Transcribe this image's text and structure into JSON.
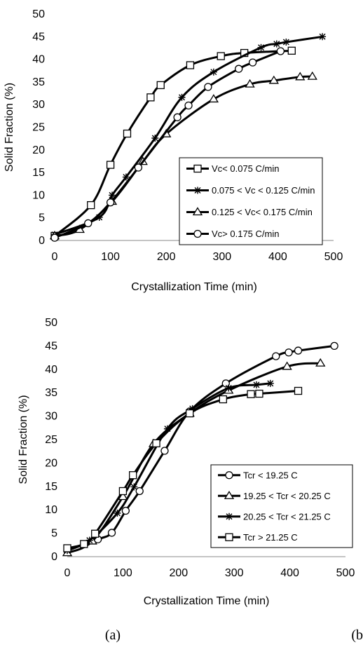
{
  "panel_labels": [
    "(a)",
    "(b"
  ],
  "chart_data": [
    {
      "type": "line",
      "xlabel": "Crystallization Time (min)",
      "ylabel": "Solid Fraction (%)",
      "xlim": [
        0,
        500
      ],
      "ylim": [
        0,
        50
      ],
      "xticks": [
        "0",
        "100",
        "200",
        "300",
        "400",
        "500"
      ],
      "yticks": [
        "0",
        "5",
        "10",
        "15",
        "20",
        "25",
        "30",
        "35",
        "40",
        "45",
        "50"
      ],
      "grid": false,
      "legend_position": "center-right",
      "series": [
        {
          "name": "Vc< 0.075  C/min",
          "marker": "square",
          "x": [
            0,
            65,
            100,
            130,
            172,
            190,
            243,
            298,
            340,
            425
          ],
          "y": [
            1,
            7.8,
            16.7,
            23.6,
            31.6,
            34.3,
            38.7,
            40.7,
            41.4,
            41.9
          ]
        },
        {
          "name": "0.075 < Vc < 0.125 C/min",
          "marker": "star",
          "x": [
            0,
            80,
            103,
            128,
            180,
            228,
            285,
            370,
            398,
            415,
            480
          ],
          "y": [
            1.3,
            5.1,
            10,
            14,
            22.6,
            31.6,
            37.2,
            42.6,
            43.4,
            43.8,
            45
          ]
        },
        {
          "name": "0.125 < Vc< 0.175 C/min",
          "marker": "triangle",
          "x": [
            0,
            45,
            103,
            158,
            200,
            285,
            350,
            393,
            440,
            462
          ],
          "y": [
            1,
            2.4,
            8.6,
            17.4,
            23.5,
            31.2,
            34.5,
            35.3,
            36.1,
            36.2
          ]
        },
        {
          "name": "Vc> 0.175 C/min",
          "marker": "circle",
          "x": [
            0,
            60,
            100,
            150,
            220,
            240,
            275,
            330,
            355,
            405
          ],
          "y": [
            0.6,
            3.8,
            8.4,
            16.1,
            27.2,
            29.8,
            33.9,
            37.9,
            39.3,
            41.8
          ]
        }
      ]
    },
    {
      "type": "line",
      "xlabel": "Crystallization Time (min)",
      "ylabel": "Solid Fraction (%)",
      "xlim": [
        0,
        500
      ],
      "ylim": [
        0,
        50
      ],
      "xticks": [
        "0",
        "100",
        "200",
        "300",
        "400",
        "500"
      ],
      "yticks": [
        "0",
        "5",
        "10",
        "15",
        "20",
        "25",
        "30",
        "35",
        "40",
        "45",
        "50"
      ],
      "grid": false,
      "legend_position": "center-right",
      "series": [
        {
          "name": "Tcr < 19.25 C",
          "marker": "circle",
          "x": [
            0,
            55,
            80,
            105,
            130,
            175,
            220,
            285,
            375,
            398,
            415,
            480
          ],
          "y": [
            1.3,
            3.7,
            5.1,
            9.8,
            14,
            22.6,
            31,
            37,
            42.8,
            43.6,
            44,
            45
          ]
        },
        {
          "name": "19.25 < Tcr < 20.25 C",
          "marker": "triangle",
          "x": [
            0,
            45,
            100,
            155,
            220,
            290,
            395,
            455
          ],
          "y": [
            0.8,
            3.3,
            12.8,
            24.1,
            30.6,
            35.5,
            40.6,
            41.3
          ]
        },
        {
          "name": "20.25 < Tcr < 21.25 C",
          "marker": "star",
          "x": [
            0,
            40,
            90,
            120,
            180,
            225,
            290,
            340,
            365
          ],
          "y": [
            1.3,
            3.5,
            9.3,
            14.9,
            27.3,
            31.6,
            36,
            36.7,
            37
          ]
        },
        {
          "name": "Tcr > 21.25 C",
          "marker": "square",
          "x": [
            0,
            30,
            50,
            100,
            118,
            160,
            220,
            280,
            330,
            345,
            415
          ],
          "y": [
            1.8,
            2.7,
            4.9,
            14,
            17.4,
            24.2,
            30.6,
            33.6,
            34.7,
            34.8,
            35.4
          ]
        }
      ]
    }
  ]
}
